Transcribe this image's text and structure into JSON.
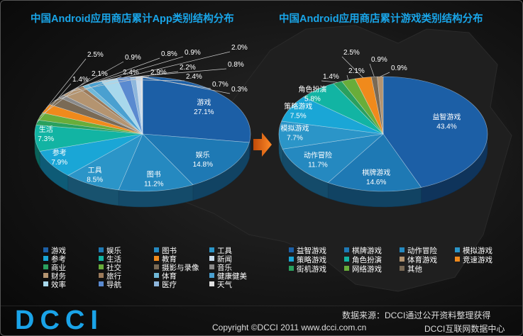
{
  "chart_data": [
    {
      "type": "pie",
      "title": "中国Android应用商店累计App类别结构分布",
      "slices": [
        {
          "name": "游戏",
          "value": 27.1,
          "label": "27.1%",
          "color": "#1c5fa6"
        },
        {
          "name": "娱乐",
          "value": 14.8,
          "label": "14.8%",
          "color": "#1e79b4"
        },
        {
          "name": "图书",
          "value": 11.2,
          "label": "11.2%",
          "color": "#2589c0"
        },
        {
          "name": "工具",
          "value": 8.5,
          "label": "8.5%",
          "color": "#2b95c8"
        },
        {
          "name": "参考",
          "value": 7.9,
          "label": "7.9%",
          "color": "#1aa6d6"
        },
        {
          "name": "生活",
          "value": 7.3,
          "label": "7.3%",
          "color": "#12b4a3"
        },
        {
          "name": "商业",
          "value": 1.4,
          "label": "1.4%",
          "color": "#2aa05e"
        },
        {
          "name": "社交",
          "value": 2.1,
          "label": "2.1%",
          "color": "#69ad3a"
        },
        {
          "name": "教育",
          "value": 2.5,
          "label": "2.5%",
          "color": "#f08a1c"
        },
        {
          "name": "摄影与录像",
          "value": 2.4,
          "label": "2.4%",
          "color": "#7a6a55"
        },
        {
          "name": "音乐",
          "value": 0.9,
          "label": "0.9%",
          "color": "#8a8a8a"
        },
        {
          "name": "财务",
          "value": 2.9,
          "label": "2.9%",
          "color": "#b49470"
        },
        {
          "name": "旅行",
          "value": 0.8,
          "label": "0.8%",
          "color": "#9b7a5a"
        },
        {
          "name": "体育",
          "value": 0.9,
          "label": "0.9%",
          "color": "#6fb8d8"
        },
        {
          "name": "健康健美",
          "value": 2.2,
          "label": "2.2%",
          "color": "#4aa0d0"
        },
        {
          "name": "效率",
          "value": 2.4,
          "label": "2.4%",
          "color": "#a8d8ec"
        },
        {
          "name": "导航",
          "value": 2.0,
          "label": "2.0%",
          "color": "#5a8ad0"
        },
        {
          "name": "医疗",
          "value": 0.8,
          "label": "0.8%",
          "color": "#8db6dc"
        },
        {
          "name": "新闻",
          "value": 0.7,
          "label": "0.7%",
          "color": "#c9dced"
        },
        {
          "name": "天气",
          "value": 0.3,
          "label": "0.3%",
          "color": "#e0e0e0"
        }
      ],
      "legend": [
        {
          "name": "游戏",
          "color": "#1c5fa6"
        },
        {
          "name": "娱乐",
          "color": "#1e79b4"
        },
        {
          "name": "图书",
          "color": "#2589c0"
        },
        {
          "name": "工具",
          "color": "#2b95c8"
        },
        {
          "name": "参考",
          "color": "#1aa6d6"
        },
        {
          "name": "生活",
          "color": "#12b4a3"
        },
        {
          "name": "教育",
          "color": "#f08a1c"
        },
        {
          "name": "新闻",
          "color": "#c9dced"
        },
        {
          "name": "商业",
          "color": "#2aa05e"
        },
        {
          "name": "社交",
          "color": "#69ad3a"
        },
        {
          "name": "摄影与录像",
          "color": "#7a6a55"
        },
        {
          "name": "音乐",
          "color": "#8a8a8a"
        },
        {
          "name": "财务",
          "color": "#b49470"
        },
        {
          "name": "旅行",
          "color": "#9b7a5a"
        },
        {
          "name": "体育",
          "color": "#6fb8d8"
        },
        {
          "name": "健康健美",
          "color": "#4aa0d0"
        },
        {
          "name": "效率",
          "color": "#a8d8ec"
        },
        {
          "name": "导航",
          "color": "#5a8ad0"
        },
        {
          "name": "医疗",
          "color": "#8db6dc"
        },
        {
          "name": "天气",
          "color": "#e0e0e0"
        }
      ]
    },
    {
      "type": "pie",
      "title": "中国Android应用商店累计游戏类别结构分布",
      "slices": [
        {
          "name": "益智游戏",
          "value": 43.4,
          "label": "43.4%",
          "color": "#1c5fa6"
        },
        {
          "name": "棋牌游戏",
          "value": 14.6,
          "label": "14.6%",
          "color": "#1e79b4"
        },
        {
          "name": "动作冒险",
          "value": 11.7,
          "label": "11.7%",
          "color": "#2589c0"
        },
        {
          "name": "模拟游戏",
          "value": 7.7,
          "label": "7.7%",
          "color": "#2b95c8"
        },
        {
          "name": "策略游戏",
          "value": 7.5,
          "label": "7.5%",
          "color": "#1aa6d6"
        },
        {
          "name": "角色扮演",
          "value": 5.8,
          "label": "5.8%",
          "color": "#12b4a3"
        },
        {
          "name": "街机游戏",
          "value": 1.4,
          "label": "1.4%",
          "color": "#2aa05e"
        },
        {
          "name": "网络游戏",
          "value": 2.1,
          "label": "2.1%",
          "color": "#69ad3a"
        },
        {
          "name": "竞速游戏",
          "value": 2.5,
          "label": "2.5%",
          "color": "#f08a1c"
        },
        {
          "name": "其他",
          "value": 0.9,
          "label": "0.9%",
          "color": "#7a6a55"
        },
        {
          "name": "体育游戏",
          "value": 0.9,
          "label": "0.9%",
          "color": "#b49470"
        }
      ],
      "legend": [
        {
          "name": "益智游戏",
          "color": "#1c5fa6"
        },
        {
          "name": "棋牌游戏",
          "color": "#1e79b4"
        },
        {
          "name": "动作冒险",
          "color": "#2589c0"
        },
        {
          "name": "模拟游戏",
          "color": "#2b95c8"
        },
        {
          "name": "策略游戏",
          "color": "#1aa6d6"
        },
        {
          "name": "角色扮演",
          "color": "#12b4a3"
        },
        {
          "name": "体育游戏",
          "color": "#b49470"
        },
        {
          "name": "竞速游戏",
          "color": "#f08a1c"
        },
        {
          "name": "街机游戏",
          "color": "#2aa05e"
        },
        {
          "name": "网络游戏",
          "color": "#69ad3a"
        },
        {
          "name": "其他",
          "color": "#7a6a55"
        }
      ]
    }
  ],
  "footer": {
    "logo": "DCCI",
    "source": "数据来源：DCCI通过公开资料整理获得",
    "copyright": "Copyright ©DCCI 2011 www.dcci.com.cn",
    "center": "DCCI互联网数据中心"
  }
}
